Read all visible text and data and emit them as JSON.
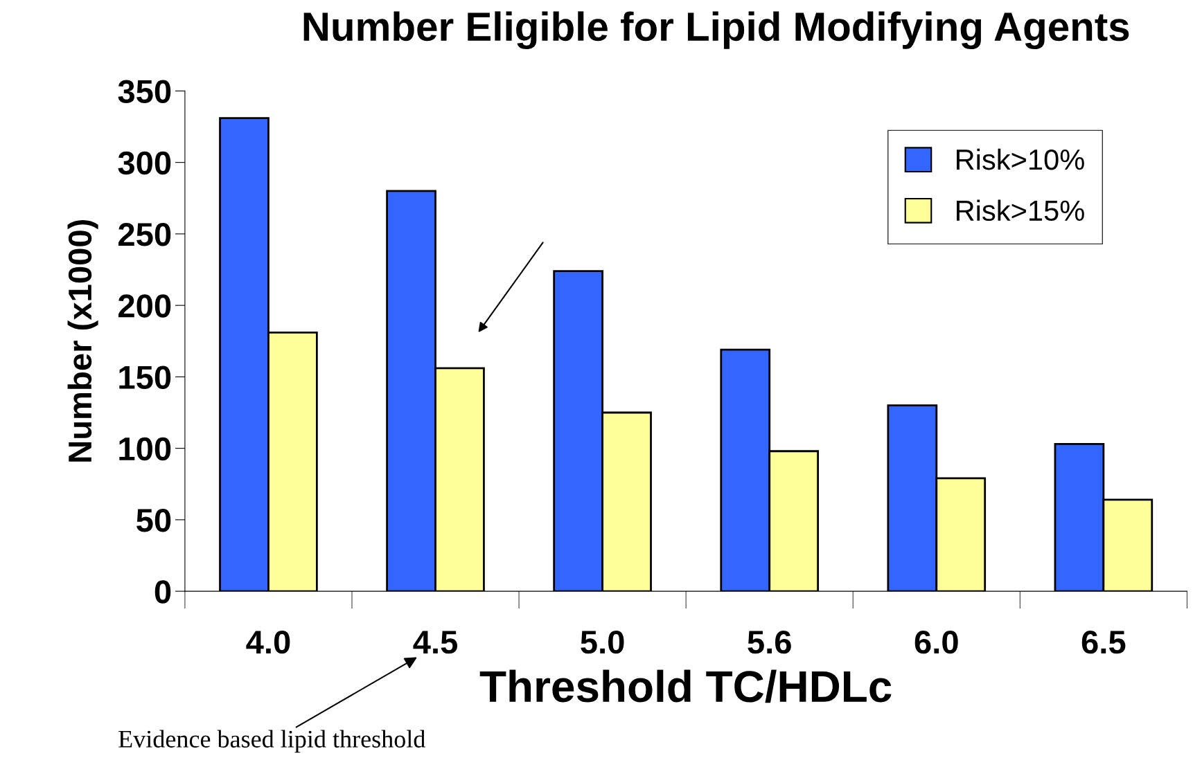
{
  "chart_data": {
    "type": "bar",
    "title": "Number Eligible for Lipid Modifying Agents",
    "xlabel": "Threshold TC/HDLc",
    "ylabel": "Number (x1000)",
    "categories": [
      "4.0",
      "4.5",
      "5.0",
      "5.6",
      "6.0",
      "6.5"
    ],
    "series": [
      {
        "name": "Risk>10%",
        "color": "#3366ff",
        "values": [
          331,
          280,
          224,
          169,
          130,
          103
        ]
      },
      {
        "name": "Risk>15%",
        "color": "#ffff99",
        "values": [
          181,
          156,
          125,
          98,
          79,
          64
        ]
      }
    ],
    "ylim": [
      0,
      350
    ],
    "yticks": [
      0,
      50,
      100,
      150,
      200,
      250,
      300,
      350
    ],
    "grid": false,
    "legend": "top right",
    "annotations": [
      "Evidence based lipid threshold"
    ]
  }
}
